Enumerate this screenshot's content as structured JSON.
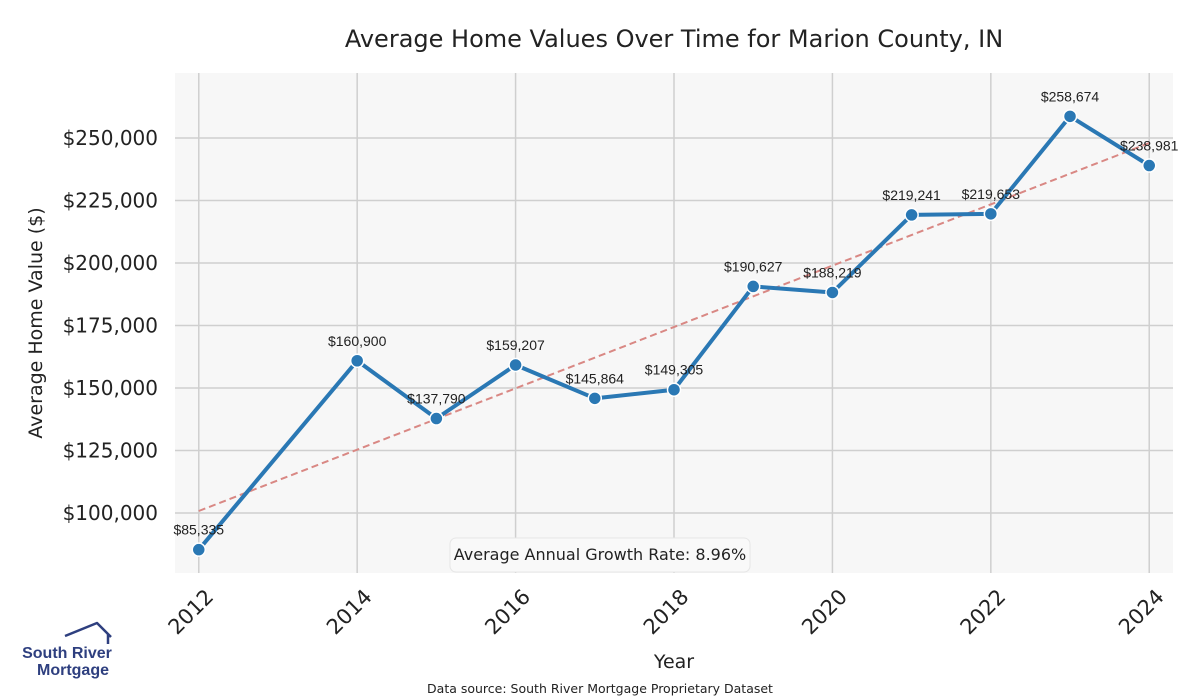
{
  "chart_data": {
    "type": "line",
    "title": "Average Home Values Over Time for Marion County, IN",
    "xlabel": "Year",
    "ylabel": "Average Home Value ($)",
    "x": [
      2012,
      2014,
      2015,
      2016,
      2017,
      2018,
      2019,
      2020,
      2021,
      2022,
      2023,
      2024
    ],
    "values": [
      85335,
      160900,
      137790,
      159207,
      145864,
      149305,
      190627,
      188219,
      219241,
      219653,
      258674,
      238981
    ],
    "data_labels": [
      "$85,335",
      "$160,900",
      "$137,790",
      "$159,207",
      "$145,864",
      "$149,305",
      "$190,627",
      "$188,219",
      "$219,241",
      "$219,653",
      "$258,674",
      "$238,981"
    ],
    "xticks": [
      2012,
      2014,
      2016,
      2018,
      2020,
      2022,
      2024
    ],
    "xtick_labels": [
      "2012",
      "2014",
      "2016",
      "2018",
      "2020",
      "2022",
      "2024"
    ],
    "yticks": [
      100000,
      125000,
      150000,
      175000,
      200000,
      225000,
      250000
    ],
    "ytick_labels": [
      "$100,000",
      "$125,000",
      "$150,000",
      "$175,000",
      "$200,000",
      "$225,000",
      "$250,000"
    ],
    "xlim": [
      2011.7,
      2024.3
    ],
    "ylim": [
      76000,
      276000
    ],
    "trendline": {
      "x": [
        2012,
        2024
      ],
      "y": [
        100800,
        248000
      ]
    },
    "annotation": "Average Annual Growth Rate: 8.96%",
    "grid": true,
    "colors": {
      "line": "#2a78b4",
      "trend": "#d98884",
      "grid": "#cfcfcf",
      "background": "#f7f7f7"
    }
  },
  "source_note": "Data source: South River Mortgage Proprietary Dataset",
  "logo": {
    "line1": "South River",
    "line2": "Mortgage",
    "color": "#2e3f7f"
  }
}
